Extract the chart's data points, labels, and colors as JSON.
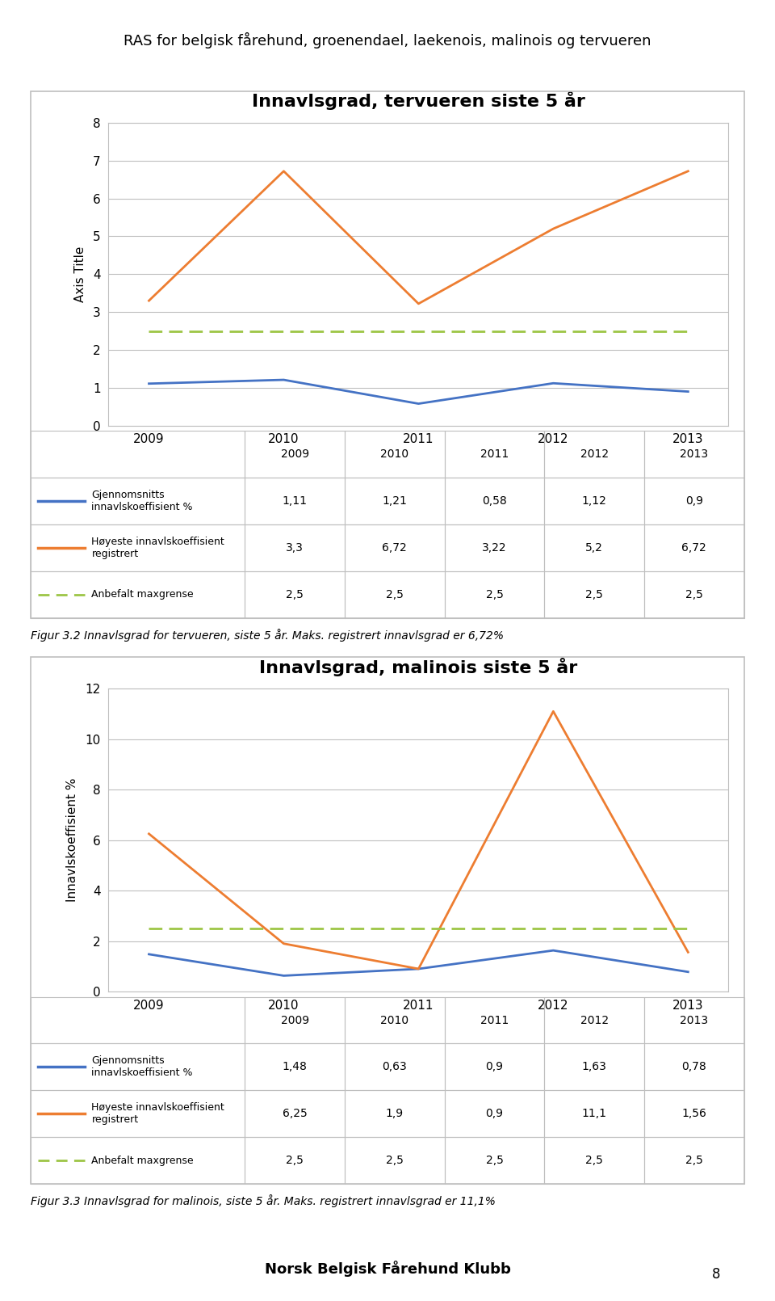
{
  "page_title": "RAS for belgisk fårehund, groenendael, laekenois, malinois og tervueren",
  "footer": "Norsk Belgisk Fårehund Klubb",
  "page_number": "8",
  "chart1": {
    "title": "Innavlsgrad, tervueren siste 5 år",
    "ylabel": "Axis Title",
    "years": [
      2009,
      2010,
      2011,
      2012,
      2013
    ],
    "avg_line": [
      1.11,
      1.21,
      0.58,
      1.12,
      0.9
    ],
    "max_line": [
      3.3,
      6.72,
      3.22,
      5.2,
      6.72
    ],
    "max_grense": [
      2.5,
      2.5,
      2.5,
      2.5,
      2.5
    ],
    "ylim": [
      0,
      8
    ],
    "yticks": [
      0,
      1,
      2,
      3,
      4,
      5,
      6,
      7,
      8
    ],
    "avg_color": "#4472C4",
    "max_color": "#ED7D31",
    "grense_color": "#9DC546",
    "table_rows": [
      [
        "Gjennomsnitts\ninnavlskoeffisient %",
        "1,11",
        "1,21",
        "0,58",
        "1,12",
        "0,9"
      ],
      [
        "Høyeste innavlskoeffisient\nregistrert",
        "3,3",
        "6,72",
        "3,22",
        "5,2",
        "6,72"
      ],
      [
        "Anbefalt maxgrense",
        "2,5",
        "2,5",
        "2,5",
        "2,5",
        "2,5"
      ]
    ],
    "caption": "Figur 3.2 Innavlsgrad for tervueren, siste 5 år. Maks. registrert innavlsgrad er 6,72%"
  },
  "chart2": {
    "title": "Innavlsgrad, malinois siste 5 år",
    "ylabel": "Innavlskoeffisient %",
    "years": [
      2009,
      2010,
      2011,
      2012,
      2013
    ],
    "avg_line": [
      1.48,
      0.63,
      0.9,
      1.63,
      0.78
    ],
    "max_line": [
      6.25,
      1.9,
      0.9,
      11.1,
      1.56
    ],
    "max_grense": [
      2.5,
      2.5,
      2.5,
      2.5,
      2.5
    ],
    "ylim": [
      0,
      12
    ],
    "yticks": [
      0,
      2,
      4,
      6,
      8,
      10,
      12
    ],
    "avg_color": "#4472C4",
    "max_color": "#ED7D31",
    "grense_color": "#9DC546",
    "table_rows": [
      [
        "Gjennomsnitts\ninnavlskoeffisient %",
        "1,48",
        "0,63",
        "0,9",
        "1,63",
        "0,78"
      ],
      [
        "Høyeste innavlskoeffisient\nregistrert",
        "6,25",
        "1,9",
        "0,9",
        "11,1",
        "1,56"
      ],
      [
        "Anbefalt maxgrense",
        "2,5",
        "2,5",
        "2,5",
        "2,5",
        "2,5"
      ]
    ],
    "caption": "Figur 3.3 Innavlsgrad for malinois, siste 5 år. Maks. registrert innavlsgrad er 11,1%"
  },
  "background_color": "#FFFFFF",
  "box_color": "#BFBFBF",
  "grid_color": "#BFBFBF"
}
